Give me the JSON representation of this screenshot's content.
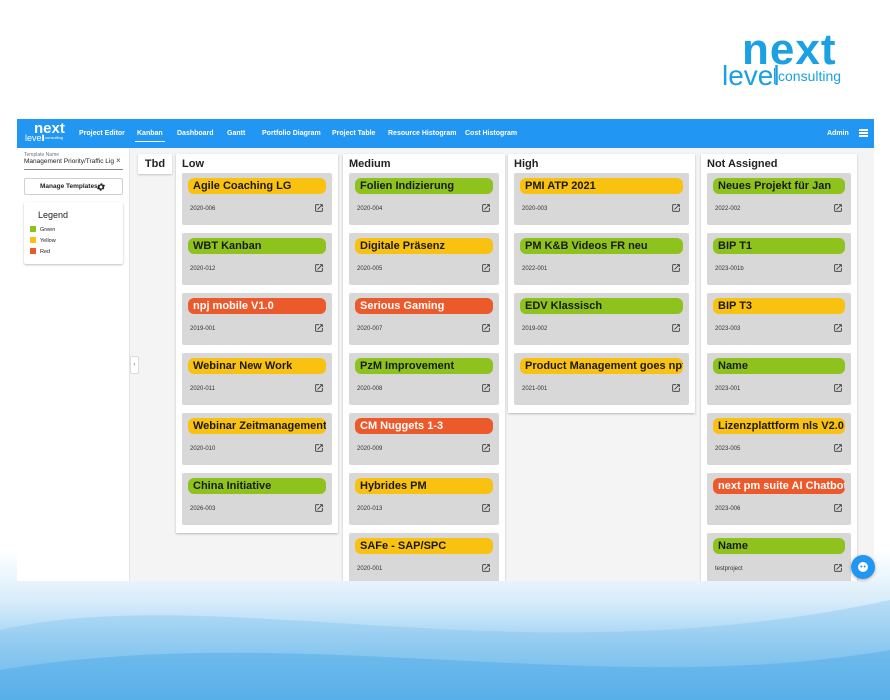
{
  "brand": {
    "word1": "next",
    "word2": "level",
    "word3": "consulting"
  },
  "app_logo": {
    "word1": "next",
    "word2": "level",
    "word3": "consulting"
  },
  "nav": {
    "items": [
      {
        "label": "Project Editor"
      },
      {
        "label": "Kanban"
      },
      {
        "label": "Dashboard"
      },
      {
        "label": "Gantt"
      },
      {
        "label": "Portfolio Diagram"
      },
      {
        "label": "Project Table"
      },
      {
        "label": "Resource Histogram"
      },
      {
        "label": "Cost Histogram"
      }
    ],
    "active": "Kanban",
    "user": "Admin"
  },
  "sidebar": {
    "template_label": "Template Name",
    "template_value": "Management Priority/Traffic Lig",
    "clear_glyph": "×",
    "manage_label": "Manage Templates",
    "legend_title": "Legend",
    "legend": [
      {
        "label": "Green",
        "color": "#8ec21c"
      },
      {
        "label": "Yellow",
        "color": "#f9c110"
      },
      {
        "label": "Red",
        "color": "#ec5a2c"
      }
    ],
    "collapse_glyph": "‹"
  },
  "board": {
    "tbd_label": "Tbd",
    "columns": [
      {
        "title": "Low",
        "cards": [
          {
            "name": "Agile Coaching LG",
            "code": "2020-006",
            "status": "yellow"
          },
          {
            "name": "WBT Kanban",
            "code": "2020-012",
            "status": "green"
          },
          {
            "name": "npj mobile V1.0",
            "code": "2019-001",
            "status": "red"
          },
          {
            "name": "Webinar New Work",
            "code": "2020-011",
            "status": "yellow"
          },
          {
            "name": "Webinar Zeitmanagement",
            "code": "2020-010",
            "status": "yellow"
          },
          {
            "name": "China Initiative",
            "code": "2026-003",
            "status": "green"
          }
        ]
      },
      {
        "title": "Medium",
        "cards": [
          {
            "name": "Folien Indizierung",
            "code": "2020-004",
            "status": "green"
          },
          {
            "name": "Digitale Präsenz",
            "code": "2020-005",
            "status": "yellow"
          },
          {
            "name": "Serious Gaming",
            "code": "2020-007",
            "status": "red"
          },
          {
            "name": "PzM Improvement",
            "code": "2020-008",
            "status": "green"
          },
          {
            "name": "CM Nuggets 1-3",
            "code": "2020-009",
            "status": "red"
          },
          {
            "name": "Hybrides PM",
            "code": "2020-013",
            "status": "yellow"
          },
          {
            "name": "SAFe - SAP/SPC",
            "code": "2020-001",
            "status": "yellow"
          }
        ]
      },
      {
        "title": "High",
        "cards": [
          {
            "name": "PMI ATP 2021",
            "code": "2020-003",
            "status": "yellow"
          },
          {
            "name": "PM K&B Videos FR neu",
            "code": "2022-001",
            "status": "green"
          },
          {
            "name": "EDV Klassisch",
            "code": "2019-002",
            "status": "green"
          },
          {
            "name": "Product Management goes npf",
            "code": "2021-001",
            "status": "yellow"
          }
        ]
      },
      {
        "title": "Not Assigned",
        "cards": [
          {
            "name": "Neues Projekt für Jan",
            "code": "2022-002",
            "status": "green"
          },
          {
            "name": "BIP T1",
            "code": "2023-001b",
            "status": "green"
          },
          {
            "name": "BIP T3",
            "code": "2023-003",
            "status": "yellow"
          },
          {
            "name": "Name",
            "code": "2023-001",
            "status": "green"
          },
          {
            "name": "Lizenzplattform nls V2.0",
            "code": "2023-005",
            "status": "yellow"
          },
          {
            "name": "next pm suite AI Chatbot",
            "code": "2023-006",
            "status": "red"
          },
          {
            "name": "Name",
            "code": "testproject",
            "status": "green"
          }
        ]
      }
    ]
  }
}
